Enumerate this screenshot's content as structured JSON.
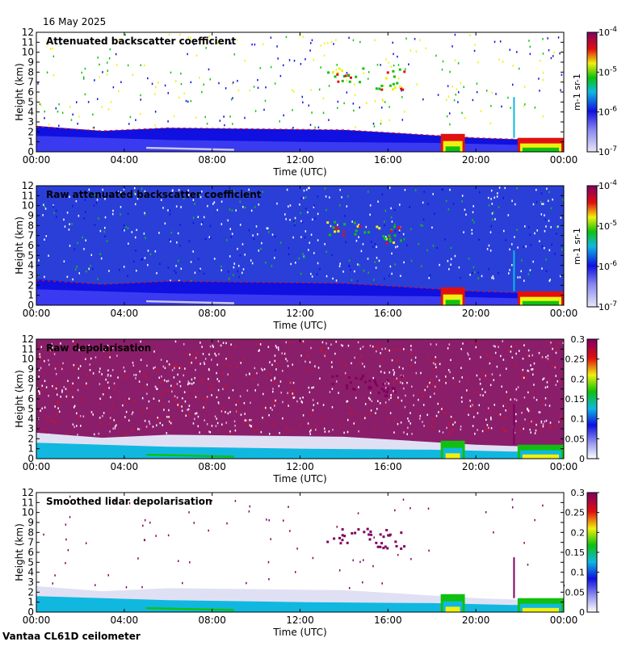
{
  "date_label": "16 May 2025",
  "footer_label": "Vantaa CL61D ceilometer",
  "colors": {
    "background": "#ffffff",
    "clear_air": "#ffffff",
    "noise_floor": "#d8d8ec",
    "palette_low": "#e8e8f8",
    "palette_blue": "#1010e0",
    "palette_green": "#10c010",
    "palette_yellow": "#f0f010",
    "palette_red": "#e01010",
    "palette_high": "#800060"
  },
  "chart_data": [
    {
      "type": "heatmap",
      "title": "Attenuated backscatter coefficient",
      "xlabel": "Time (UTC)",
      "ylabel": "Height (km)",
      "xticks": [
        "00:00",
        "04:00",
        "08:00",
        "12:00",
        "16:00",
        "20:00",
        "00:00"
      ],
      "xlim_hours": [
        0,
        24
      ],
      "yticks": [
        "0",
        "1",
        "2",
        "3",
        "4",
        "5",
        "6",
        "7",
        "8",
        "9",
        "10",
        "11",
        "12"
      ],
      "ylim_km": [
        0,
        12
      ],
      "colorbar": {
        "scale": "log",
        "range": [
          1e-07,
          0.0001
        ],
        "tick_labels": [
          "10-7",
          "10-6",
          "10-5",
          "10-4"
        ],
        "unit_label": "m-1 sr-1"
      },
      "features": [
        {
          "kind": "boundary_layer_top",
          "start_h": 0,
          "end_h": 24,
          "height_km": 2.3
        },
        {
          "kind": "cloud",
          "start_h": 13.2,
          "end_h": 15.2,
          "base_km": 7.0,
          "top_km": 8.5
        },
        {
          "kind": "cloud",
          "start_h": 15.3,
          "end_h": 16.7,
          "base_km": 6.3,
          "top_km": 8.4
        },
        {
          "kind": "low_cloud",
          "start_h": 18.4,
          "end_h": 19.5,
          "base_km": 0.0,
          "top_km": 1.8
        },
        {
          "kind": "low_cloud",
          "start_h": 21.9,
          "end_h": 24.0,
          "base_km": 0.0,
          "top_km": 1.4
        }
      ]
    },
    {
      "type": "heatmap",
      "title": "Raw attenuated backscatter coefficient",
      "xlabel": "Time (UTC)",
      "ylabel": "Height (km)",
      "xticks": [
        "00:00",
        "04:00",
        "08:00",
        "12:00",
        "16:00",
        "20:00",
        "00:00"
      ],
      "xlim_hours": [
        0,
        24
      ],
      "yticks": [
        "0",
        "1",
        "2",
        "3",
        "4",
        "5",
        "6",
        "7",
        "8",
        "9",
        "10",
        "11",
        "12"
      ],
      "ylim_km": [
        0,
        12
      ],
      "colorbar": {
        "scale": "log",
        "range": [
          1e-07,
          0.0001
        ],
        "tick_labels": [
          "10-7",
          "10-6",
          "10-5",
          "10-4"
        ],
        "unit_label": "m-1 sr-1"
      }
    },
    {
      "type": "heatmap",
      "title": "Raw depolarisation",
      "xlabel": "Time (UTC)",
      "ylabel": "Height (km)",
      "xticks": [
        "00:00",
        "04:00",
        "08:00",
        "12:00",
        "16:00",
        "20:00",
        "00:00"
      ],
      "xlim_hours": [
        0,
        24
      ],
      "yticks": [
        "0",
        "1",
        "2",
        "3",
        "4",
        "5",
        "6",
        "7",
        "8",
        "9",
        "10",
        "11",
        "12"
      ],
      "ylim_km": [
        0,
        12
      ],
      "colorbar": {
        "scale": "linear",
        "range": [
          0,
          0.3
        ],
        "tick_labels": [
          "0",
          "0.05",
          "0.1",
          "0.15",
          "0.2",
          "0.25",
          "0.3"
        ],
        "unit_label": ""
      }
    },
    {
      "type": "heatmap",
      "title": "Smoothed lidar depolarisation",
      "xlabel": "Time (UTC)",
      "ylabel": "Height (km)",
      "xticks": [
        "00:00",
        "04:00",
        "08:00",
        "12:00",
        "16:00",
        "20:00",
        "00:00"
      ],
      "xlim_hours": [
        0,
        24
      ],
      "yticks": [
        "0",
        "1",
        "2",
        "3",
        "4",
        "5",
        "6",
        "7",
        "8",
        "9",
        "10",
        "11",
        "12"
      ],
      "ylim_km": [
        0,
        12
      ],
      "colorbar": {
        "scale": "linear",
        "range": [
          0,
          0.3
        ],
        "tick_labels": [
          "0",
          "0.05",
          "0.1",
          "0.15",
          "0.2",
          "0.25",
          "0.3"
        ],
        "unit_label": ""
      }
    }
  ]
}
